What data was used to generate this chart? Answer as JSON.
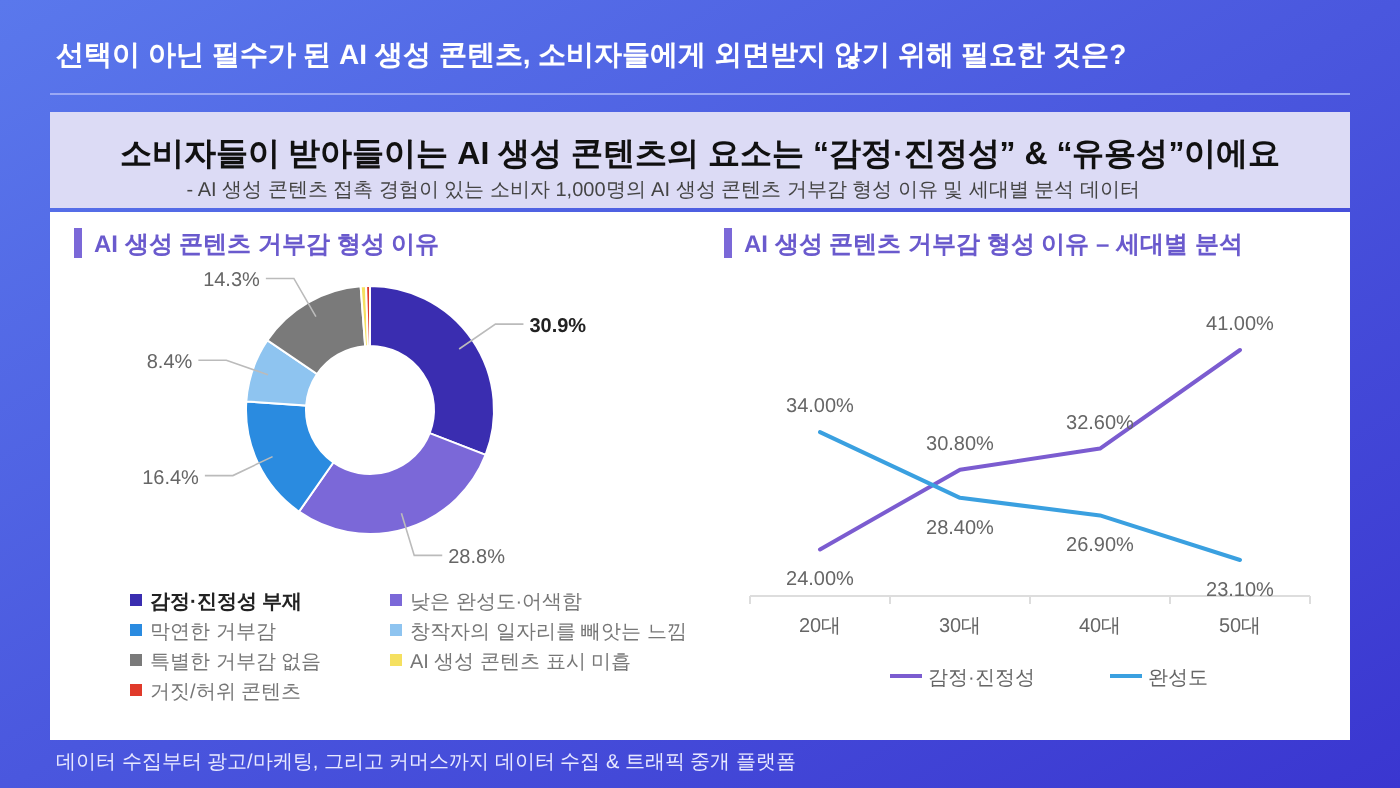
{
  "chart_data": [
    {
      "type": "donut",
      "title": "AI 생성 콘텐츠 거부감 형성 이유",
      "annotations": [
        "선택이 아닌 필수가 된 AI 생성 콘텐츠, 소비자들에게 외면받지 않기 위해 필요한 것은?",
        "소비자들이 받아들이는 AI 생성 콘텐츠의 요소는 “감정·진정성” & “유용성”이에요",
        "- AI 생성 콘텐츠 접촉 경험이 있는 소비자 1,000명의 AI 생성 콘텐츠 거부감 형성 이유 및 세대별 분석 데이터",
        "데이터 수집부터 광고/마케팅, 그리고 커머스까지 데이터 수집 & 트래픽 중개 플랫폼"
      ],
      "categories": [
        "감정·진정성 부재",
        "낮은 완성도·어색함",
        "막연한 거부감",
        "창작자의 일자리를 빼앗는 느낌",
        "특별한 거부감 없음",
        "AI 생성 콘텐츠 표시 미흡",
        "거짓/허위 콘텐츠"
      ],
      "values": [
        30.9,
        28.8,
        16.4,
        8.4,
        14.3,
        0.7,
        0.5
      ],
      "value_labels": [
        "30.9%",
        "28.8%",
        "16.4%",
        "8.4%",
        "14.3%",
        null,
        null
      ],
      "colors": [
        "#3a2db0",
        "#7b68d8",
        "#2a8be0",
        "#8ec4f0",
        "#7a7a7a",
        "#f5e060",
        "#e03a2a"
      ],
      "legend": "bottom"
    },
    {
      "type": "line",
      "title": "AI 생성 콘텐츠 거부감 형성 이유 – 세대별 분석",
      "categories": [
        "20대",
        "30대",
        "40대",
        "50대"
      ],
      "series": [
        {
          "name": "감정·진정성",
          "color": "#7b5cd0",
          "values": [
            24.0,
            30.8,
            32.6,
            41.0
          ],
          "value_labels": [
            "24.00%",
            "30.80%",
            "32.60%",
            "41.00%"
          ]
        },
        {
          "name": "완성도",
          "color": "#3aa0e0",
          "values": [
            34.0,
            28.4,
            26.9,
            23.1
          ],
          "value_labels": [
            "34.00%",
            "28.40%",
            "26.90%",
            "23.10%"
          ]
        }
      ],
      "legend": "bottom",
      "marker": "none",
      "line_style": "solid"
    }
  ]
}
